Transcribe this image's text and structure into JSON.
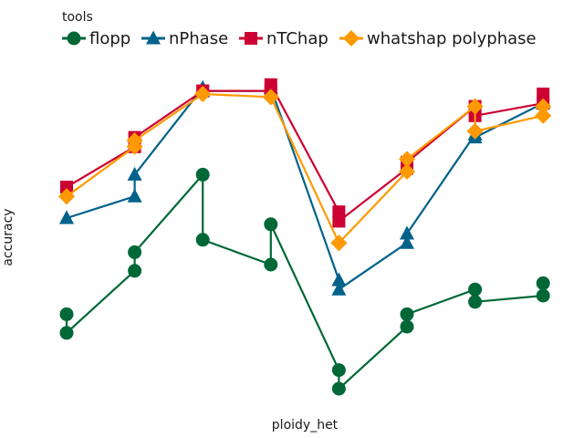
{
  "chart_data": {
    "type": "line",
    "title": "",
    "xlabel": "ploidy_het",
    "ylabel": "accuracy",
    "grid": false,
    "axes_ticks_visible": false,
    "legend_placement": "top-left",
    "legend_title": "tools",
    "x": [
      1,
      2,
      3,
      4,
      5,
      6,
      7,
      8
    ],
    "ylim": [
      0,
      1
    ],
    "series": [
      {
        "name": "flopp",
        "color": "#006837",
        "marker": "circle",
        "values": [
          [
            0.18,
            0.24
          ],
          [
            0.38,
            0.44
          ],
          [
            0.48,
            0.69
          ],
          [
            0.4,
            0.53
          ],
          [
            0.0,
            0.06
          ],
          [
            0.2,
            0.24
          ],
          [
            0.28,
            0.32
          ],
          [
            0.3,
            0.34
          ]
        ]
      },
      {
        "name": "nPhase",
        "color": "#00628b",
        "marker": "triangle",
        "values": [
          [
            0.55,
            0.55
          ],
          [
            0.62,
            0.69
          ],
          [
            0.96,
            0.97
          ],
          [
            0.96,
            0.97
          ],
          [
            0.32,
            0.35
          ],
          [
            0.47,
            0.5
          ],
          [
            0.81,
            0.82
          ],
          [
            0.92,
            0.93
          ]
        ]
      },
      {
        "name": "nTChap",
        "color": "#cc0033",
        "marker": "square",
        "values": [
          [
            0.65,
            0.65
          ],
          [
            0.78,
            0.81
          ],
          [
            0.96,
            0.96
          ],
          [
            0.96,
            0.98
          ],
          [
            0.54,
            0.57
          ],
          [
            0.71,
            0.73
          ],
          [
            0.88,
            0.91
          ],
          [
            0.92,
            0.95
          ]
        ]
      },
      {
        "name": "whatshap polyphase",
        "color": "#ff9900",
        "marker": "diamond",
        "values": [
          [
            0.62,
            0.62
          ],
          [
            0.78,
            0.8
          ],
          [
            0.95,
            0.95
          ],
          [
            0.94,
            0.94
          ],
          [
            0.47,
            0.47
          ],
          [
            0.7,
            0.74
          ],
          [
            0.83,
            0.91
          ],
          [
            0.88,
            0.91
          ]
        ]
      }
    ]
  }
}
